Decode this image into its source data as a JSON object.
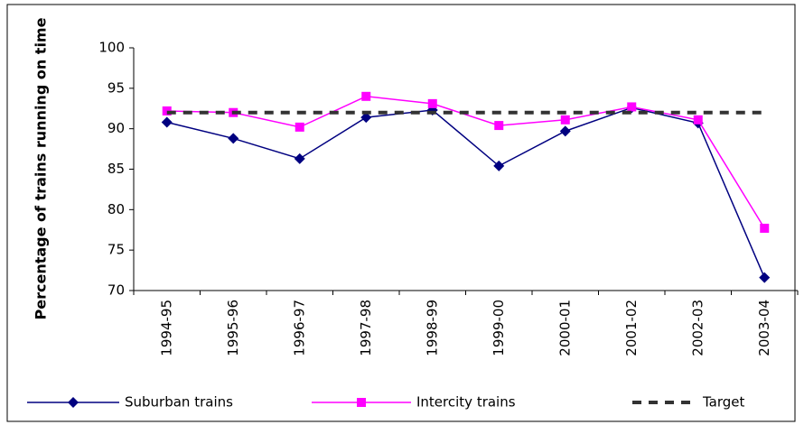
{
  "chart_data": {
    "type": "line",
    "y_label": "Percentage of trains running on time",
    "categories": [
      "1994-95",
      "1995-96",
      "1996-97",
      "1997-98",
      "1998-99",
      "1999-00",
      "2000-01",
      "2001-02",
      "2002-03",
      "2003-04"
    ],
    "series": [
      {
        "name": "Suburban trains",
        "color": "#000080",
        "marker": "diamond",
        "values": [
          90.8,
          88.8,
          86.3,
          91.4,
          92.3,
          85.4,
          89.7,
          92.6,
          90.7,
          71.6
        ]
      },
      {
        "name": "Intercity trains",
        "color": "#ff00ff",
        "marker": "square",
        "values": [
          92.2,
          92.0,
          90.2,
          94.0,
          93.1,
          90.4,
          91.1,
          92.7,
          91.1,
          77.7
        ]
      },
      {
        "name": "Target",
        "color": "#333333",
        "dashed": true,
        "values": [
          92,
          92,
          92,
          92,
          92,
          92,
          92,
          92,
          92,
          92
        ]
      }
    ],
    "ylim": [
      70,
      100
    ],
    "yticks": [
      70,
      75,
      80,
      85,
      90,
      95,
      100
    ],
    "grid": false,
    "legend": "bottom"
  }
}
